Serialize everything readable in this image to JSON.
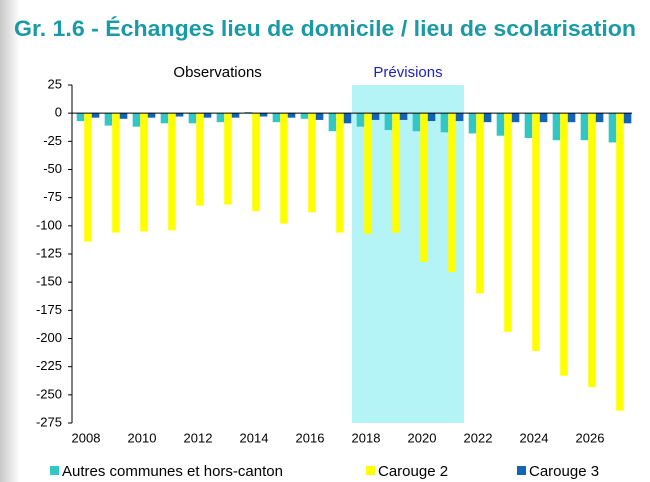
{
  "chart_data": {
    "type": "bar",
    "title": "Gr. 1.6 - Échanges lieu de domicile / lieu de scolarisation",
    "annotations": [
      "Observations",
      "Prévisions"
    ],
    "categories": [
      "2008",
      null,
      "2010",
      null,
      "2012",
      null,
      "2014",
      null,
      "2016",
      null,
      "2018",
      null,
      "2020",
      null,
      "2022",
      null,
      "2024",
      null,
      "2026",
      null
    ],
    "series": [
      {
        "name": "Autres communes et hors-canton",
        "color": "#33c6c6",
        "values": [
          -7,
          -11,
          -12,
          -9,
          -9,
          -8,
          1,
          -8,
          -5,
          -16,
          -12,
          -15,
          -16,
          -17,
          -18,
          -20,
          -22,
          -24,
          -24,
          -26
        ]
      },
      {
        "name": "Carouge 2",
        "color": "#ffff00",
        "values": [
          -114,
          -106,
          -105,
          -104,
          -82,
          -81,
          -87,
          -98,
          -88,
          -106,
          -107,
          -106,
          -132,
          -141,
          -160,
          -194,
          -211,
          -233,
          -243,
          -264
        ]
      },
      {
        "name": "Carouge 3",
        "color": "#1464b4",
        "values": [
          -4,
          -5,
          -4,
          -3,
          -4,
          -4,
          -3,
          -4,
          -6,
          -9,
          -6,
          -6,
          -7,
          -7,
          -8,
          -8,
          -8,
          -8,
          -8,
          -9
        ]
      }
    ],
    "ylim": [
      -275,
      25
    ],
    "yticks": [
      25,
      0,
      -25,
      -50,
      -75,
      -100,
      -125,
      -150,
      -175,
      -200,
      -225,
      -250,
      -275
    ],
    "grid": false
  }
}
